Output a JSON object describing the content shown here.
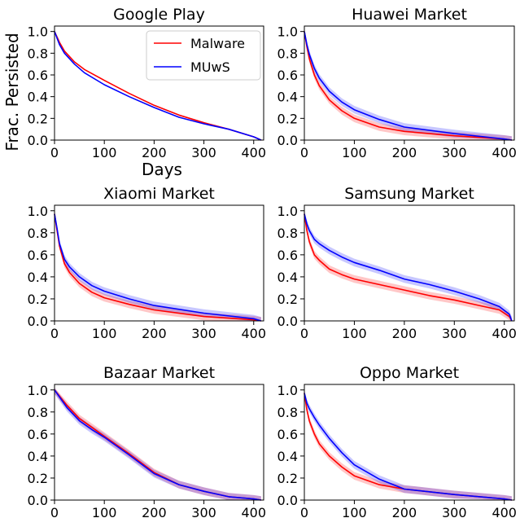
{
  "figure": {
    "ylabel": "Frac. Persisted",
    "xlabel": "Days",
    "legend": {
      "placement": "upper-right of first panel",
      "items": [
        {
          "label": "Malware",
          "color": "#ff0000"
        },
        {
          "label": "MUwS",
          "color": "#0000ff"
        }
      ]
    }
  },
  "chart_data": [
    {
      "type": "line",
      "title": "Google Play",
      "xlim": [
        0,
        420
      ],
      "ylim": [
        0,
        1.05
      ],
      "xticks": [
        "0",
        "100",
        "200",
        "300",
        "400"
      ],
      "yticks": [
        "0.0",
        "0.2",
        "0.4",
        "0.6",
        "0.8",
        "1.0"
      ],
      "grid": false,
      "band_around_lines": false,
      "series": [
        {
          "name": "Malware",
          "color": "#ff0000",
          "x": [
            0,
            10,
            20,
            40,
            60,
            100,
            150,
            200,
            250,
            300,
            350,
            400,
            415
          ],
          "y": [
            1.0,
            0.9,
            0.82,
            0.72,
            0.65,
            0.55,
            0.43,
            0.32,
            0.23,
            0.16,
            0.1,
            0.03,
            0.0
          ]
        },
        {
          "name": "MUwS",
          "color": "#0000ff",
          "x": [
            0,
            10,
            20,
            40,
            60,
            100,
            150,
            200,
            250,
            300,
            350,
            400,
            415
          ],
          "y": [
            1.0,
            0.88,
            0.8,
            0.7,
            0.62,
            0.51,
            0.4,
            0.3,
            0.21,
            0.15,
            0.1,
            0.03,
            0.0
          ]
        }
      ]
    },
    {
      "type": "line",
      "title": "Huawei Market",
      "xlim": [
        0,
        420
      ],
      "ylim": [
        0,
        1.05
      ],
      "xticks": [
        "0",
        "100",
        "200",
        "300",
        "400"
      ],
      "yticks": [
        "0.0",
        "0.2",
        "0.4",
        "0.6",
        "0.8",
        "1.0"
      ],
      "grid": false,
      "band_around_lines": true,
      "series": [
        {
          "name": "Malware",
          "color": "#ff0000",
          "x": [
            0,
            5,
            10,
            20,
            30,
            50,
            75,
            100,
            150,
            200,
            300,
            400,
            415
          ],
          "y": [
            1.0,
            0.86,
            0.75,
            0.6,
            0.5,
            0.37,
            0.27,
            0.2,
            0.12,
            0.08,
            0.04,
            0.01,
            0.0
          ]
        },
        {
          "name": "MUwS",
          "color": "#0000ff",
          "x": [
            0,
            5,
            10,
            20,
            30,
            50,
            75,
            100,
            150,
            200,
            300,
            400,
            415
          ],
          "y": [
            1.0,
            0.88,
            0.79,
            0.66,
            0.57,
            0.45,
            0.35,
            0.28,
            0.19,
            0.12,
            0.06,
            0.01,
            0.0
          ]
        }
      ]
    },
    {
      "type": "line",
      "title": "Xiaomi Market",
      "xlim": [
        0,
        420
      ],
      "ylim": [
        0,
        1.05
      ],
      "xticks": [
        "0",
        "100",
        "200",
        "300",
        "400"
      ],
      "yticks": [
        "0.0",
        "0.2",
        "0.4",
        "0.6",
        "0.8",
        "1.0"
      ],
      "grid": false,
      "band_around_lines": true,
      "series": [
        {
          "name": "Malware",
          "color": "#ff0000",
          "x": [
            0,
            5,
            10,
            20,
            30,
            50,
            75,
            100,
            150,
            200,
            300,
            400,
            415
          ],
          "y": [
            0.97,
            0.82,
            0.68,
            0.52,
            0.44,
            0.34,
            0.26,
            0.21,
            0.15,
            0.1,
            0.04,
            0.01,
            0.0
          ]
        },
        {
          "name": "MUwS",
          "color": "#0000ff",
          "x": [
            0,
            5,
            10,
            20,
            30,
            50,
            75,
            100,
            150,
            200,
            300,
            400,
            415
          ],
          "y": [
            0.97,
            0.84,
            0.7,
            0.56,
            0.49,
            0.4,
            0.32,
            0.27,
            0.2,
            0.14,
            0.07,
            0.02,
            0.0
          ]
        }
      ]
    },
    {
      "type": "line",
      "title": "Samsung Market",
      "xlim": [
        0,
        420
      ],
      "ylim": [
        0,
        1.05
      ],
      "xticks": [
        "0",
        "100",
        "200",
        "300",
        "400"
      ],
      "yticks": [
        "0.0",
        "0.2",
        "0.4",
        "0.6",
        "0.8",
        "1.0"
      ],
      "grid": false,
      "band_around_lines": true,
      "series": [
        {
          "name": "Malware",
          "color": "#ff0000",
          "x": [
            0,
            5,
            10,
            20,
            30,
            50,
            75,
            100,
            150,
            200,
            250,
            300,
            350,
            390,
            410,
            415
          ],
          "y": [
            0.97,
            0.82,
            0.72,
            0.6,
            0.55,
            0.47,
            0.42,
            0.38,
            0.33,
            0.28,
            0.23,
            0.19,
            0.14,
            0.1,
            0.04,
            0.0
          ]
        },
        {
          "name": "MUwS",
          "color": "#0000ff",
          "x": [
            0,
            5,
            10,
            20,
            30,
            50,
            75,
            100,
            150,
            200,
            250,
            300,
            350,
            390,
            410,
            415
          ],
          "y": [
            0.97,
            0.88,
            0.82,
            0.74,
            0.7,
            0.64,
            0.58,
            0.53,
            0.46,
            0.38,
            0.33,
            0.27,
            0.2,
            0.13,
            0.06,
            0.0
          ]
        }
      ]
    },
    {
      "type": "line",
      "title": "Bazaar Market",
      "xlim": [
        0,
        420
      ],
      "ylim": [
        0,
        1.05
      ],
      "xticks": [
        "0",
        "100",
        "200",
        "300",
        "400"
      ],
      "yticks": [
        "0.0",
        "0.2",
        "0.4",
        "0.6",
        "0.8",
        "1.0"
      ],
      "grid": false,
      "band_around_lines": true,
      "series": [
        {
          "name": "Malware",
          "color": "#ff0000",
          "x": [
            0,
            25,
            50,
            75,
            100,
            150,
            200,
            250,
            300,
            350,
            400,
            415
          ],
          "y": [
            1.0,
            0.86,
            0.74,
            0.66,
            0.58,
            0.42,
            0.25,
            0.14,
            0.08,
            0.03,
            0.01,
            0.0
          ]
        },
        {
          "name": "MUwS",
          "color": "#0000ff",
          "x": [
            0,
            25,
            50,
            75,
            100,
            150,
            200,
            250,
            300,
            350,
            400,
            415
          ],
          "y": [
            1.0,
            0.84,
            0.72,
            0.64,
            0.57,
            0.41,
            0.24,
            0.14,
            0.08,
            0.03,
            0.01,
            0.0
          ]
        }
      ]
    },
    {
      "type": "line",
      "title": "Oppo Market",
      "xlim": [
        0,
        420
      ],
      "ylim": [
        0,
        1.05
      ],
      "xticks": [
        "0",
        "100",
        "200",
        "300",
        "400"
      ],
      "yticks": [
        "0.0",
        "0.2",
        "0.4",
        "0.6",
        "0.8",
        "1.0"
      ],
      "grid": false,
      "band_around_lines": true,
      "series": [
        {
          "name": "Malware",
          "color": "#ff0000",
          "x": [
            0,
            5,
            10,
            20,
            30,
            50,
            75,
            100,
            150,
            200,
            300,
            400,
            415
          ],
          "y": [
            0.97,
            0.82,
            0.72,
            0.6,
            0.51,
            0.4,
            0.3,
            0.22,
            0.14,
            0.1,
            0.05,
            0.01,
            0.0
          ]
        },
        {
          "name": "MUwS",
          "color": "#0000ff",
          "x": [
            0,
            5,
            10,
            20,
            30,
            50,
            75,
            100,
            150,
            200,
            300,
            400,
            415
          ],
          "y": [
            0.97,
            0.88,
            0.83,
            0.75,
            0.68,
            0.56,
            0.43,
            0.32,
            0.19,
            0.1,
            0.05,
            0.01,
            0.0
          ]
        }
      ]
    }
  ]
}
